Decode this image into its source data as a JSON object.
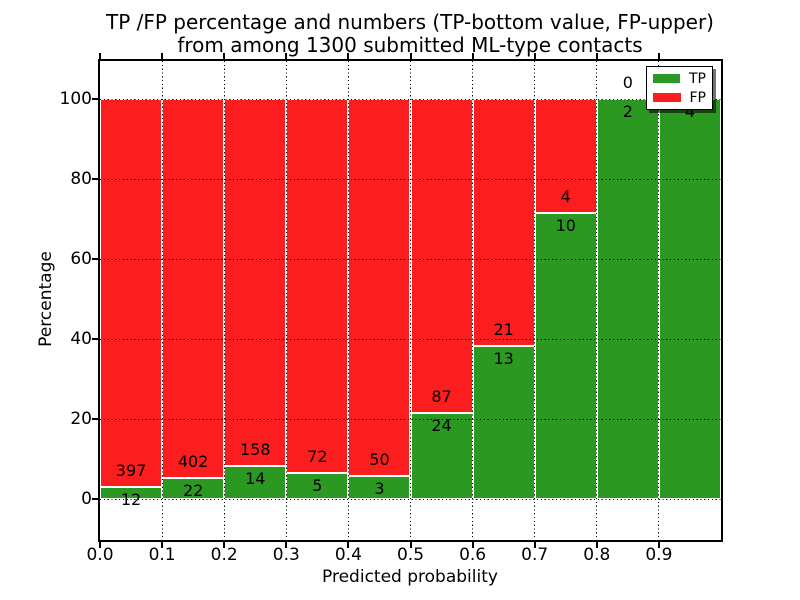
{
  "chart_data": {
    "type": "bar",
    "stacked": true,
    "orientation": "vertical",
    "title_line1": "TP /FP percentage and numbers (TP-bottom value, FP-upper)",
    "title_line2": "from among 1300 submitted ML-type contacts",
    "xlabel": "Predicted probability",
    "ylabel": "Percentage",
    "xlim": [
      0.0,
      1.0
    ],
    "ylim": [
      -10,
      110
    ],
    "grid": "dotted",
    "legend_position": "upper right",
    "total_contacts": 1300,
    "bin_width": 0.1,
    "x_tick_labels": [
      "0.0",
      "0.1",
      "0.2",
      "0.3",
      "0.4",
      "0.5",
      "0.6",
      "0.7",
      "0.8",
      "0.9"
    ],
    "y_tick_labels": [
      "0",
      "20",
      "40",
      "60",
      "80",
      "100"
    ],
    "y_tick_values": [
      0,
      20,
      40,
      60,
      80,
      100
    ],
    "categories": [
      "0.0-0.1",
      "0.1-0.2",
      "0.2-0.3",
      "0.3-0.4",
      "0.4-0.5",
      "0.5-0.6",
      "0.6-0.7",
      "0.7-0.8",
      "0.8-0.9",
      "0.9-1.0"
    ],
    "series": [
      {
        "name": "TP",
        "color": "#2b9822",
        "values": [
          12,
          22,
          14,
          5,
          3,
          24,
          13,
          10,
          2,
          4
        ]
      },
      {
        "name": "FP",
        "color": "#fc1e1e",
        "values": [
          397,
          402,
          158,
          72,
          50,
          87,
          21,
          4,
          0,
          0
        ]
      }
    ],
    "note": "bars show percentage split of TP vs FP per bin; numeric labels are raw counts (TP below boundary, FP above)",
    "legend": [
      {
        "label": "TP",
        "color": "#2b9822"
      },
      {
        "label": "FP",
        "color": "#fc1e1e"
      }
    ]
  },
  "colors": {
    "tp_green": "#2b9822",
    "fp_red": "#fc1e1e",
    "background": "#ffffff",
    "text": "#000000"
  }
}
